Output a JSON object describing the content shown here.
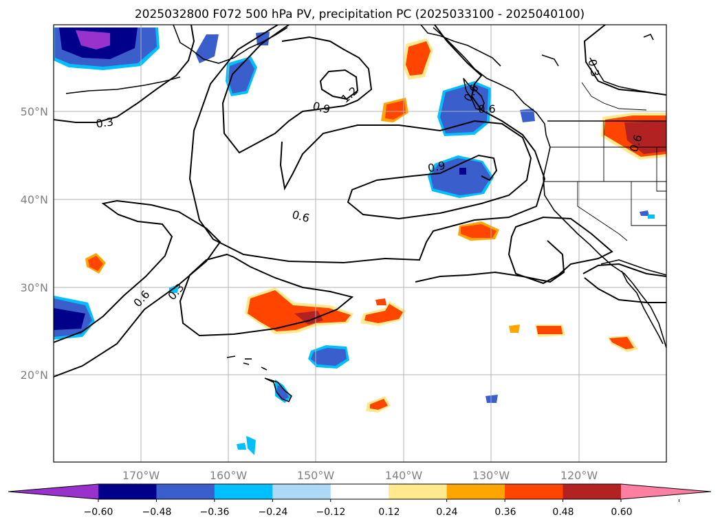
{
  "title": "2025032800 F072 500 hPa PV, precipitation PC (2025033100 - 2025040100)",
  "lat_labels": [
    "50°N",
    "40°N",
    "30°N",
    "20°N"
  ],
  "lon_labels": [
    "170°W",
    "160°W",
    "150°W",
    "140°W",
    "130°W",
    "120°W"
  ],
  "contour_labels": [
    "0.3",
    "0.6",
    "0.9",
    "1.2",
    "0.9",
    "0.6",
    "0.6",
    "0.3",
    "0.3",
    "0.6",
    "0.6"
  ],
  "colorbar": {
    "ticks": [
      "−0.60",
      "−0.48",
      "−0.36",
      "−0.24",
      "−0.12",
      "0.12",
      "0.24",
      "0.36",
      "0.48",
      "0.60"
    ],
    "colors": [
      "#9932cc",
      "#00008b",
      "#3a5fcd",
      "#00bfff",
      "#add8f6",
      "#ffffff",
      "#ffe98c",
      "#ffa500",
      "#ff4500",
      "#b22222",
      "#ff7fa3"
    ]
  }
}
